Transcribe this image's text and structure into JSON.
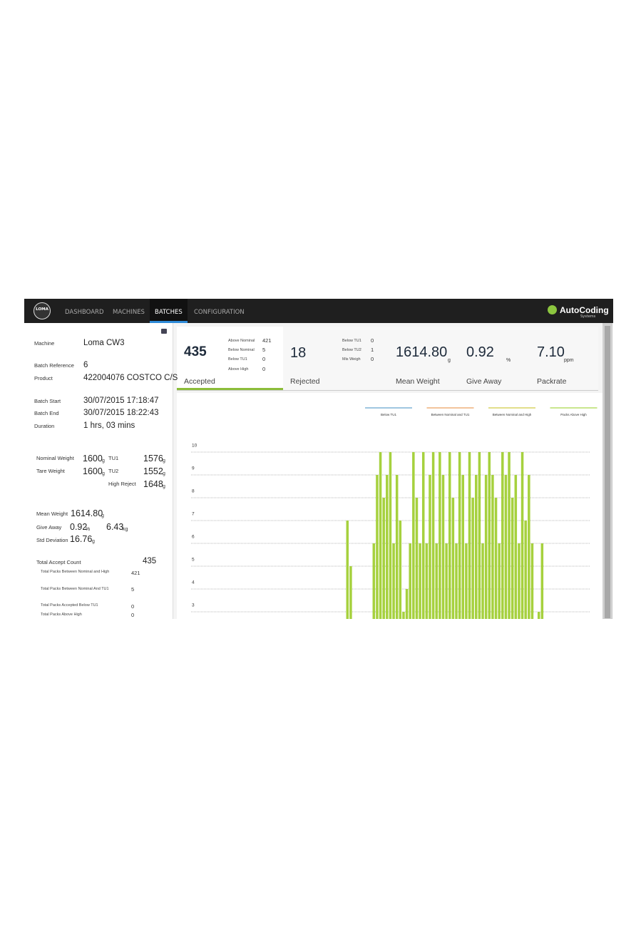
{
  "nav": {
    "logo": "LOMA",
    "items": [
      "DASHBOARD",
      "MACHINES",
      "BATCHES",
      "CONFIGURATION"
    ],
    "brand": "AutoCoding",
    "brand_sub": "Systems"
  },
  "details": {
    "machine": {
      "label": "Machine",
      "value": "Loma CW3"
    },
    "batch_reference": {
      "label": "Batch Reference",
      "value": "6"
    },
    "product": {
      "label": "Product",
      "value": "422004076 COSTCO C/S"
    },
    "batch_start": {
      "label": "Batch Start",
      "value": "30/07/2015 17:18:47"
    },
    "batch_end": {
      "label": "Batch End",
      "value": "30/07/2015 18:22:43"
    },
    "duration": {
      "label": "Duration",
      "value": "1 hrs, 03 mins"
    }
  },
  "weights": {
    "nominal": {
      "label": "Nominal Weight",
      "value": "1600",
      "unit": "g"
    },
    "tare": {
      "label": "Tare Weight",
      "value": "1600",
      "unit": "g"
    },
    "tu1": {
      "label": "TU1",
      "value": "1576",
      "unit": "g"
    },
    "tu2": {
      "label": "TU2",
      "value": "1552",
      "unit": "g"
    },
    "high_reject": {
      "label": "High Reject",
      "value": "1648",
      "unit": "g"
    }
  },
  "summary": {
    "mean_weight": {
      "label": "Mean Weight",
      "value": "1614.80",
      "unit": "g"
    },
    "give_away": {
      "label": "Give Away",
      "value": "0.92",
      "unit": "%",
      "value2": "6.43",
      "unit2": "kg"
    },
    "std_deviation": {
      "label": "Std Deviation",
      "value": "16.76",
      "unit": "g"
    }
  },
  "counts": {
    "total_accept": {
      "label": "Total Accept Count",
      "value": "435"
    },
    "rows": [
      {
        "label": "Total Packs Between Nominal and High",
        "value": "421"
      },
      {
        "label": "Total Packs Between Nominal And TU1",
        "value": "5"
      },
      {
        "label": "Total Packs Accepted Below TU1",
        "value": "0"
      },
      {
        "label": "Total Packs Above High",
        "value": "0"
      }
    ]
  },
  "stats": {
    "accepted": {
      "value": "435",
      "label": "Accepted",
      "breakdown": [
        {
          "label": "Above Nominal",
          "value": "421"
        },
        {
          "label": "Below Nominal",
          "value": "5"
        },
        {
          "label": "Below TU1",
          "value": "0"
        },
        {
          "label": "Above High",
          "value": "0"
        }
      ]
    },
    "rejected": {
      "value": "18",
      "label": "Rejected",
      "breakdown": [
        {
          "label": "Below TU1",
          "value": "0"
        },
        {
          "label": "Below TU2",
          "value": "1"
        },
        {
          "label": "Mis Weigh",
          "value": "0"
        }
      ]
    },
    "mean_weight": {
      "value": "1614.80",
      "unit": "g",
      "label": "Mean Weight"
    },
    "give_away": {
      "value": "0.92",
      "unit": "%",
      "label": "Give Away"
    },
    "packrate": {
      "value": "7.10",
      "unit": "ppm",
      "label": "Packrate"
    }
  },
  "chart_data": {
    "type": "bar",
    "color": "#a6d13e",
    "grid": true,
    "legend": [
      {
        "name": "Below TU1",
        "color": "#9fc6e0"
      },
      {
        "name": "Between Nominal and TU1",
        "color": "#f2c49b"
      },
      {
        "name": "Between Nominal and High",
        "color": "#e2de8a"
      },
      {
        "name": "Packs Above High",
        "color": "#c9e68e"
      }
    ],
    "ylim": [
      0,
      10
    ],
    "yticks": [
      3,
      4,
      5,
      6,
      7,
      8,
      9,
      10
    ],
    "values": [
      0,
      0,
      0,
      0,
      0,
      0,
      0,
      0,
      0,
      0,
      0,
      0,
      0,
      0,
      0,
      0,
      0,
      0,
      0,
      0,
      0,
      0,
      0,
      0,
      0,
      0,
      0,
      0,
      0,
      0,
      0,
      0,
      0,
      0,
      0,
      0,
      0,
      0,
      0,
      0,
      0,
      0,
      0,
      0,
      0,
      0,
      0,
      7,
      5,
      0,
      0,
      0,
      0,
      0,
      0,
      6,
      9,
      10,
      8,
      9,
      10,
      6,
      9,
      7,
      3,
      4,
      6,
      10,
      8,
      6,
      10,
      6,
      9,
      10,
      6,
      10,
      9,
      6,
      10,
      8,
      6,
      10,
      9,
      6,
      10,
      8,
      9,
      10,
      6,
      9,
      10,
      9,
      8,
      6,
      10,
      9,
      10,
      8,
      9,
      6,
      10,
      7,
      9,
      6,
      0,
      3,
      6,
      0,
      0,
      0,
      0,
      0,
      0,
      0,
      0,
      0,
      0,
      0,
      0,
      0,
      0
    ]
  }
}
